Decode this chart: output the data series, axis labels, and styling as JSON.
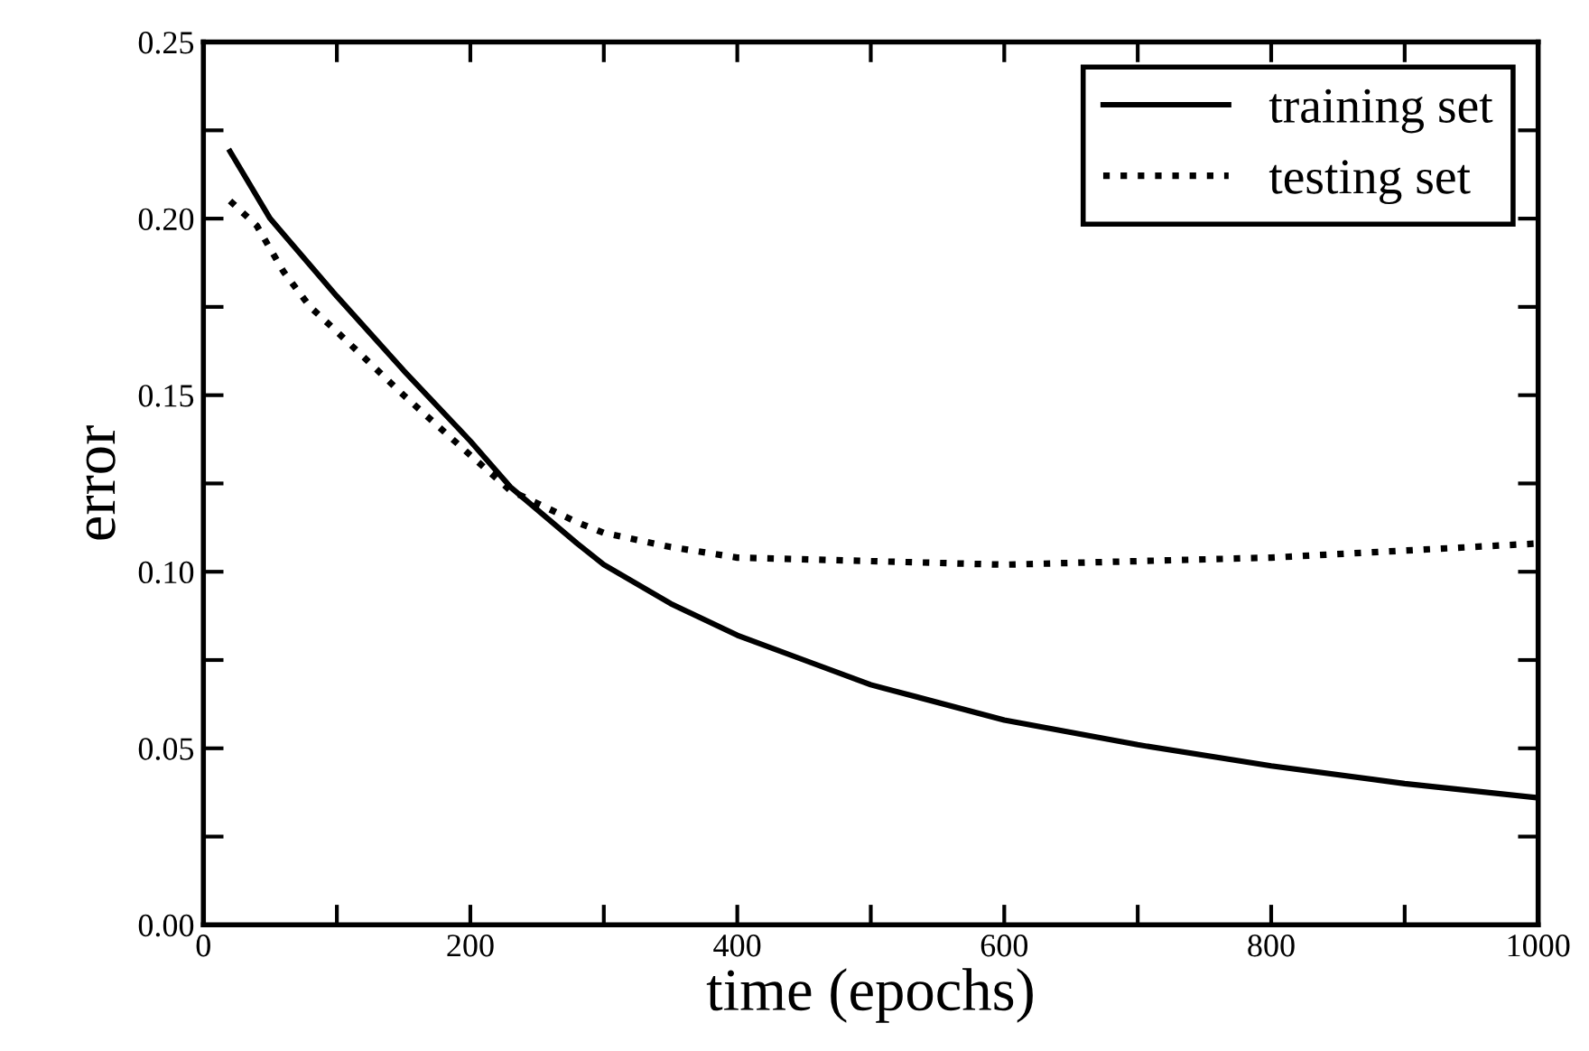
{
  "chart_data": {
    "type": "line",
    "xlabel": "time (epochs)",
    "ylabel": "error",
    "xlim": [
      0,
      1000
    ],
    "ylim": [
      0,
      0.25
    ],
    "xticks": [
      0,
      {
        "value": 100,
        "label": null
      },
      200,
      {
        "value": 300,
        "label": null
      },
      400,
      {
        "value": 500,
        "label": null
      },
      600,
      {
        "value": 700,
        "label": null
      },
      800,
      {
        "value": 900,
        "label": null
      },
      1000
    ],
    "yticks": [
      {
        "value": 0,
        "label": "0.00"
      },
      {
        "value": 0.025,
        "label": null
      },
      {
        "value": 0.05,
        "label": "0.05"
      },
      {
        "value": 0.075,
        "label": null
      },
      {
        "value": 0.1,
        "label": "0.10"
      },
      {
        "value": 0.125,
        "label": null
      },
      {
        "value": 0.15,
        "label": "0.15"
      },
      {
        "value": 0.175,
        "label": null
      },
      {
        "value": 0.2,
        "label": "0.20"
      },
      {
        "value": 0.225,
        "label": null
      },
      {
        "value": 0.25,
        "label": "0.25"
      }
    ],
    "grid": false,
    "legend": "top right",
    "marker": "none",
    "series": [
      {
        "name": "training set",
        "color": "#000000",
        "line_style": "solid",
        "x": [
          20,
          50,
          100,
          150,
          200,
          230,
          280,
          300,
          350,
          400,
          450,
          500,
          600,
          700,
          800,
          900,
          1000
        ],
        "values": [
          0.219,
          0.2,
          0.178,
          0.157,
          0.137,
          0.124,
          0.108,
          0.102,
          0.091,
          0.082,
          0.075,
          0.068,
          0.058,
          0.051,
          0.045,
          0.04,
          0.036
        ]
      },
      {
        "name": "testing set",
        "color": "#000000",
        "line_style": "dotted",
        "x": [
          20,
          40,
          60,
          80,
          100,
          150,
          200,
          230,
          280,
          300,
          350,
          400,
          500,
          600,
          700,
          800,
          900,
          1000
        ],
        "values": [
          0.205,
          0.198,
          0.185,
          0.175,
          0.168,
          0.15,
          0.133,
          0.123,
          0.114,
          0.111,
          0.107,
          0.104,
          0.103,
          0.102,
          0.103,
          0.104,
          0.106,
          0.108
        ]
      }
    ]
  }
}
